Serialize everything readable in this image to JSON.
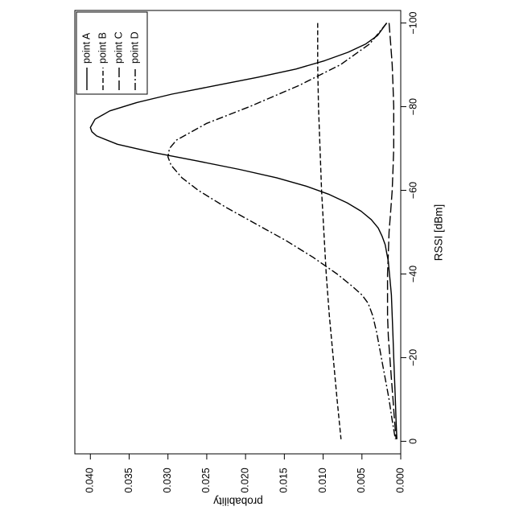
{
  "chart_data": {
    "type": "line",
    "orientation": "rotated-90-clockwise",
    "xlabel": "RSSI [dBm]",
    "ylabel": "probability",
    "xlim": [
      -103,
      3
    ],
    "ylim": [
      0,
      0.042
    ],
    "xticks": [
      -100,
      -80,
      -60,
      -40,
      -20,
      0
    ],
    "xtick_labels": [
      "−100",
      "−80",
      "−60",
      "−40",
      "−20",
      "0"
    ],
    "yticks": [
      0,
      0.005,
      0.01,
      0.015,
      0.02,
      0.025,
      0.03,
      0.035,
      0.04
    ],
    "ytick_labels": [
      "0.000",
      "0.005",
      "0.010",
      "0.015",
      "0.020",
      "0.025",
      "0.030",
      "0.035",
      "0.040"
    ],
    "grid": false,
    "legend_position": "top-right",
    "series": [
      {
        "name": "point A",
        "dash": "solid",
        "x": [
          -100,
          -97,
          -95,
          -93,
          -91,
          -89,
          -87,
          -85,
          -83,
          -81,
          -79,
          -77,
          -75,
          -74,
          -73,
          -71,
          -69,
          -67,
          -65,
          -63,
          -61,
          -59,
          -57,
          -55,
          -53,
          -51,
          -49,
          -47,
          -45,
          -43,
          -41,
          -39,
          -35,
          -30,
          -25,
          -20,
          -15,
          -10,
          -5,
          -0.5
        ],
        "values": [
          0.0018,
          0.003,
          0.0045,
          0.0068,
          0.0098,
          0.0135,
          0.0185,
          0.024,
          0.0295,
          0.034,
          0.0375,
          0.0394,
          0.04,
          0.0398,
          0.0392,
          0.0365,
          0.0318,
          0.0262,
          0.0208,
          0.016,
          0.0122,
          0.0092,
          0.0069,
          0.0051,
          0.0038,
          0.0029,
          0.0024,
          0.002,
          0.0018,
          0.0016,
          0.0015,
          0.0014,
          0.0012,
          0.0011,
          0.001,
          0.0009,
          0.0008,
          0.0007,
          0.0006,
          0.0005
        ]
      },
      {
        "name": "point B",
        "dash": "dashed",
        "x": [
          -100,
          -90,
          -80,
          -70,
          -60,
          -50,
          -40,
          -30,
          -20,
          -10,
          -0.5
        ],
        "values": [
          0.0107,
          0.0107,
          0.0106,
          0.0104,
          0.0102,
          0.0099,
          0.0096,
          0.0092,
          0.0087,
          0.0082,
          0.0077
        ]
      },
      {
        "name": "point C",
        "dash": "long-dash",
        "x": [
          -100,
          -95,
          -90,
          -85,
          -80,
          -75,
          -70,
          -65,
          -60,
          -55,
          -50,
          -45,
          -40,
          -35,
          -30,
          -25,
          -20,
          -15,
          -10,
          -5,
          -0.5
        ],
        "values": [
          0.0015,
          0.0013,
          0.0011,
          0.001,
          0.0009,
          0.0009,
          0.0009,
          0.001,
          0.0011,
          0.0013,
          0.0015,
          0.0016,
          0.0017,
          0.0017,
          0.0017,
          0.0016,
          0.0014,
          0.0012,
          0.001,
          0.0008,
          0.0006
        ]
      },
      {
        "name": "point D",
        "dash": "dash-dot",
        "x": [
          -100,
          -95,
          -90,
          -85,
          -80,
          -76,
          -72,
          -70,
          -68,
          -66,
          -63,
          -60,
          -56,
          -52,
          -48,
          -44,
          -40,
          -37,
          -35,
          -33,
          -30,
          -26,
          -22,
          -18,
          -14,
          -10,
          -5,
          -0.5
        ],
        "values": [
          0.0018,
          0.004,
          0.0078,
          0.0132,
          0.0195,
          0.025,
          0.0289,
          0.0298,
          0.03,
          0.0296,
          0.0282,
          0.0261,
          0.0226,
          0.0187,
          0.0148,
          0.0113,
          0.0082,
          0.0062,
          0.005,
          0.0042,
          0.0036,
          0.0031,
          0.0027,
          0.0023,
          0.0019,
          0.0015,
          0.0011,
          0.0007
        ]
      }
    ]
  }
}
